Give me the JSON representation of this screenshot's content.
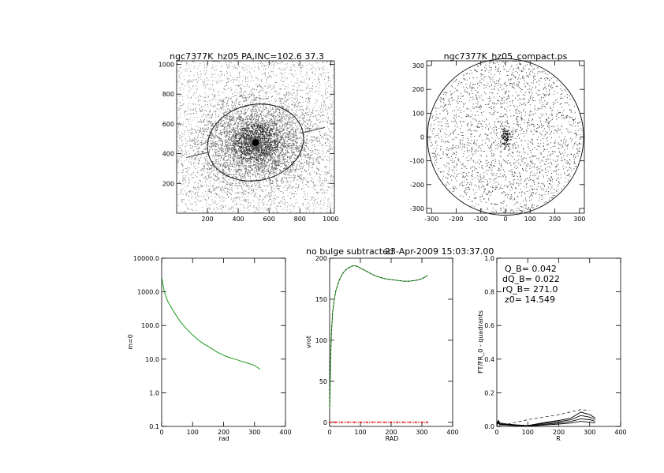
{
  "header": {
    "subtitle": "no bulge subtracted",
    "timestamp": "23-Apr-2009 15:03:37.00"
  },
  "chart_data": [
    {
      "type": "heatmap",
      "title": "ngc7377K_hz05 PA,INC=102.6 37.3",
      "xlim": [
        0,
        1024
      ],
      "ylim": [
        0,
        1024
      ],
      "xticks": [
        "200",
        "400",
        "600",
        "800",
        "1000"
      ],
      "xtick_values": [
        200,
        400,
        600,
        800,
        1000
      ],
      "yticks": [
        "200",
        "400",
        "600",
        "800",
        "1000"
      ],
      "ytick_values": [
        200,
        400,
        600,
        800,
        1000
      ],
      "galaxy_center": [
        512,
        475
      ],
      "ellipse": {
        "cx": 512,
        "cy": 475,
        "rx": 315,
        "ry": 255,
        "angle_deg": 12.6
      },
      "colors": {
        "points": "#4a4a4a",
        "core": "#000000"
      }
    },
    {
      "type": "scatter",
      "title": "ngc7377K_hz05_compact.ps",
      "xlim": [
        -320,
        320
      ],
      "ylim": [
        -320,
        320
      ],
      "xticks": [
        "-300",
        "-200",
        "-100",
        "0",
        "100",
        "200",
        "300"
      ],
      "xtick_values": [
        -300,
        -200,
        -100,
        0,
        100,
        200,
        300
      ],
      "yticks": [
        "-300",
        "-200",
        "-100",
        "0",
        "100",
        "200",
        "300"
      ],
      "ytick_values": [
        -300,
        -200,
        -100,
        0,
        100,
        200,
        300
      ],
      "circle_radius": 317
    },
    {
      "type": "line",
      "xlabel": "rad",
      "ylabel": "m=0",
      "xlim": [
        0,
        400
      ],
      "ylim": [
        0.1,
        10000
      ],
      "yscale": "log",
      "xticks": [
        "0",
        "100",
        "200",
        "300",
        "400"
      ],
      "xtick_values": [
        0,
        100,
        200,
        300,
        400
      ],
      "yticks": [
        "0.1",
        "1.0",
        "10.0",
        "100.0",
        "1000.0",
        "10000.0"
      ],
      "ytick_values": [
        0.1,
        1,
        10,
        100,
        1000,
        10000
      ],
      "series": [
        {
          "color": "#1a9a1a",
          "x": [
            1,
            5,
            10,
            20,
            30,
            40,
            50,
            60,
            80,
            100,
            120,
            140,
            160,
            180,
            200,
            220,
            240,
            260,
            280,
            300,
            310,
            318
          ],
          "y": [
            2500,
            1500,
            900,
            520,
            360,
            250,
            180,
            130,
            80,
            52,
            36,
            27,
            21,
            16,
            13,
            11,
            9.8,
            8.5,
            7.5,
            6.5,
            5.6,
            5.0
          ]
        }
      ]
    },
    {
      "type": "line",
      "xlabel": "RAD",
      "ylabel": "vrot",
      "xlim": [
        0,
        400
      ],
      "ylim": [
        -5,
        200
      ],
      "xticks": [
        "0",
        "100",
        "200",
        "300",
        "400"
      ],
      "xtick_values": [
        0,
        100,
        200,
        300,
        400
      ],
      "yticks": [
        "0",
        "50",
        "100",
        "150",
        "200"
      ],
      "ytick_values": [
        0,
        50,
        100,
        150,
        200
      ],
      "series": [
        {
          "color": "#1a9a1a",
          "x": [
            0,
            3,
            6,
            10,
            15,
            20,
            30,
            40,
            50,
            60,
            70,
            80,
            90,
            100,
            120,
            140,
            160,
            180,
            200,
            220,
            240,
            260,
            280,
            300,
            310,
            318
          ],
          "y": [
            15,
            75,
            110,
            135,
            150,
            160,
            172,
            180,
            185,
            188,
            190,
            191,
            190,
            188,
            184,
            180,
            177,
            175,
            174,
            173,
            172,
            172,
            173,
            175,
            177,
            179
          ]
        },
        {
          "color": "#e02020",
          "x": [
            0,
            20,
            40,
            60,
            80,
            100,
            120,
            140,
            160,
            180,
            200,
            220,
            240,
            260,
            280,
            300,
            318
          ],
          "y": [
            0,
            0,
            0,
            0,
            0,
            0,
            0,
            0,
            0,
            0,
            0,
            0,
            0,
            0,
            0,
            0,
            0
          ]
        }
      ]
    },
    {
      "type": "line",
      "xlabel": "R",
      "ylabel": "FT/FR_0 - quadrants",
      "xlim": [
        0,
        400
      ],
      "ylim": [
        0,
        1.0
      ],
      "xticks": [
        "0",
        "100",
        "200",
        "300",
        "400"
      ],
      "xtick_values": [
        0,
        100,
        200,
        300,
        400
      ],
      "yticks": [
        "0.0",
        "0.2",
        "0.4",
        "0.6",
        "0.8",
        "1.0"
      ],
      "ytick_values": [
        0,
        0.2,
        0.4,
        0.6,
        0.8,
        1.0
      ],
      "annotations": [
        "Q_B=  0.042",
        "dQ_B=  0.022",
        "rQ_B=  271.0",
        "z0= 14.549"
      ],
      "series": [
        {
          "style": "dashed",
          "x": [
            0,
            100,
            200,
            271,
            300
          ],
          "y": [
            0.0,
            0.04,
            0.07,
            0.1,
            0.095
          ]
        },
        {
          "style": "solid",
          "x": [
            0,
            5,
            10,
            30,
            60,
            100,
            130,
            160,
            200,
            240,
            271,
            300,
            318
          ],
          "y": [
            0.02,
            0.035,
            0.02,
            0.015,
            0.01,
            0.005,
            0.015,
            0.025,
            0.035,
            0.05,
            0.085,
            0.07,
            0.05
          ]
        },
        {
          "style": "solid",
          "x": [
            0,
            5,
            10,
            30,
            60,
            100,
            130,
            160,
            200,
            240,
            271,
            300,
            318
          ],
          "y": [
            0.015,
            0.03,
            0.015,
            0.012,
            0.008,
            0.004,
            0.012,
            0.02,
            0.028,
            0.04,
            0.065,
            0.055,
            0.04
          ]
        },
        {
          "style": "solid",
          "x": [
            0,
            5,
            10,
            30,
            60,
            100,
            130,
            160,
            200,
            240,
            271,
            300,
            318
          ],
          "y": [
            0.01,
            0.025,
            0.012,
            0.01,
            0.006,
            0.003,
            0.008,
            0.014,
            0.02,
            0.03,
            0.045,
            0.04,
            0.03
          ]
        },
        {
          "style": "solid",
          "x": [
            0,
            5,
            10,
            30,
            60,
            100,
            130,
            160,
            200,
            240,
            271,
            300,
            318
          ],
          "y": [
            0.008,
            0.02,
            0.01,
            0.008,
            0.004,
            0.002,
            0.005,
            0.009,
            0.014,
            0.02,
            0.03,
            0.025,
            0.02
          ]
        }
      ]
    }
  ]
}
